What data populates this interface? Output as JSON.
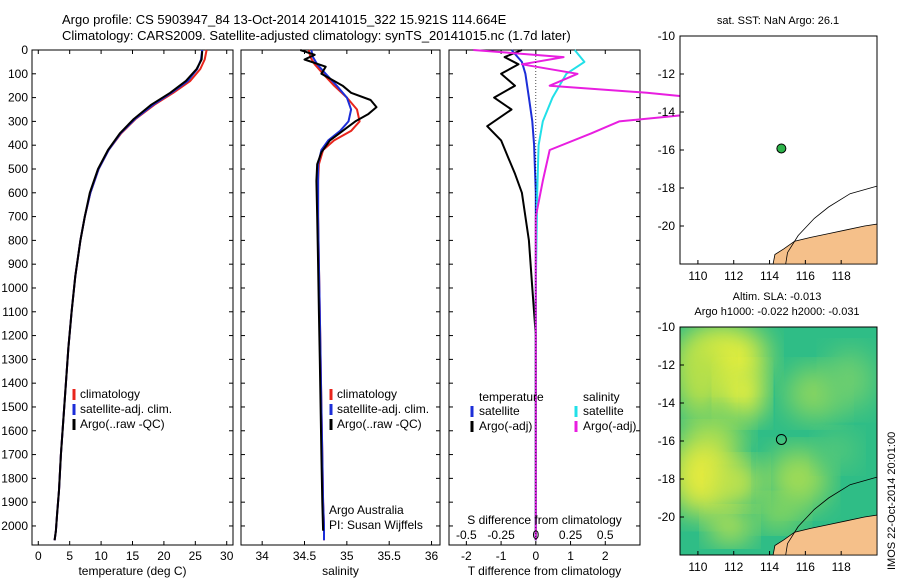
{
  "header": {
    "line1": "Argo profile: CS 5903947_84 13-Oct-2014 20141015_322 15.921S 114.664E",
    "line2": "Climatology: CARS2009. Satellite-adjusted climatology: synTS_20141015.nc (1.7d later)"
  },
  "colors": {
    "climatology": "#e8251c",
    "satellite": "#1c2ed8",
    "argo": "#000000",
    "sal_satellite": "#22e0e8",
    "sal_argo": "#e81ee0",
    "land": "#f5c08a",
    "float_marker": "#2db34a"
  },
  "footer_right": "IMOS 22-Oct-2014 20:01:00",
  "chart_data": [
    {
      "id": "temperature",
      "type": "line",
      "xlabel": "temperature (deg C)",
      "xlim": [
        -1,
        31
      ],
      "xticks": [
        0,
        5,
        10,
        15,
        20,
        25,
        30
      ],
      "ylim": [
        2080,
        0
      ],
      "yticks": [
        0,
        100,
        200,
        300,
        400,
        500,
        600,
        700,
        800,
        900,
        1000,
        1100,
        1200,
        1300,
        1400,
        1500,
        1600,
        1700,
        1800,
        1900,
        2000
      ],
      "legend": [
        "climatology",
        "satellite-adj. clim.",
        "Argo(..raw -QC)"
      ],
      "series": [
        {
          "name": "climatology",
          "color": "#e8251c",
          "x": [
            26.8,
            26.5,
            25.8,
            24.2,
            21.5,
            18.5,
            15.5,
            13.2,
            11.2,
            9.6,
            8.3,
            7.4,
            6.7,
            5.9,
            5.3,
            4.8,
            4.4,
            4.0,
            3.6,
            3.3,
            3.0,
            2.8,
            2.6
          ],
          "y": [
            0,
            40,
            80,
            130,
            180,
            230,
            290,
            350,
            420,
            500,
            600,
            700,
            800,
            950,
            1100,
            1250,
            1400,
            1550,
            1700,
            1850,
            1950,
            2020,
            2060
          ]
        },
        {
          "name": "satellite-adj. clim.",
          "color": "#1c2ed8",
          "x": [
            26.1,
            25.9,
            25.3,
            23.8,
            21.2,
            18.3,
            15.4,
            13.1,
            11.2,
            9.6,
            8.3,
            7.4,
            6.7,
            5.9,
            5.3,
            4.8,
            4.4,
            4.0,
            3.6,
            3.3,
            3.0,
            2.8,
            2.6
          ],
          "y": [
            0,
            40,
            80,
            130,
            180,
            230,
            290,
            350,
            420,
            500,
            600,
            700,
            800,
            950,
            1100,
            1250,
            1400,
            1550,
            1700,
            1850,
            1950,
            2020,
            2060
          ]
        },
        {
          "name": "Argo(..raw -QC)",
          "color": "#000000",
          "x": [
            26.1,
            26.0,
            25.2,
            23.5,
            21.0,
            18.0,
            15.2,
            13.0,
            11.1,
            9.5,
            8.2,
            7.4,
            6.7,
            5.9,
            5.3,
            4.8,
            4.4,
            4.0,
            3.6,
            3.3,
            3.0,
            2.8,
            2.6
          ],
          "y": [
            5,
            40,
            80,
            130,
            180,
            230,
            290,
            350,
            420,
            500,
            600,
            700,
            800,
            950,
            1100,
            1250,
            1400,
            1550,
            1700,
            1850,
            1950,
            2020,
            2060
          ]
        }
      ]
    },
    {
      "id": "salinity",
      "type": "line",
      "xlabel": "salinity",
      "xlim": [
        33.75,
        36.1
      ],
      "xticks": [
        34,
        34.5,
        35,
        35.5,
        36
      ],
      "ylim": [
        2080,
        0
      ],
      "legend": [
        "climatology",
        "satellite-adj. clim.",
        "Argo(..raw -QC)"
      ],
      "annotation": [
        "Argo Australia",
        "PI: Susan Wijffels"
      ],
      "series": [
        {
          "name": "climatology",
          "color": "#e8251c",
          "x": [
            34.55,
            34.57,
            34.62,
            34.72,
            34.85,
            35.0,
            35.12,
            35.15,
            35.05,
            34.85,
            34.72,
            34.67,
            34.66,
            34.66,
            34.67,
            34.68,
            34.69,
            34.7,
            34.71,
            34.72,
            34.73,
            34.73
          ],
          "y": [
            0,
            30,
            60,
            100,
            150,
            200,
            250,
            300,
            340,
            380,
            420,
            480,
            550,
            700,
            900,
            1100,
            1300,
            1500,
            1700,
            1900,
            2000,
            2060
          ]
        },
        {
          "name": "satellite-adj. clim.",
          "color": "#1c2ed8",
          "x": [
            34.58,
            34.6,
            34.65,
            34.75,
            34.88,
            35.0,
            35.05,
            35.02,
            34.92,
            34.78,
            34.7,
            34.66,
            34.66,
            34.66,
            34.67,
            34.68,
            34.69,
            34.7,
            34.71,
            34.72,
            34.73,
            34.73
          ],
          "y": [
            0,
            30,
            60,
            100,
            150,
            200,
            250,
            300,
            340,
            380,
            420,
            480,
            550,
            700,
            900,
            1100,
            1300,
            1500,
            1700,
            1900,
            2000,
            2060
          ]
        },
        {
          "name": "Argo(..raw -QC)",
          "color": "#000000",
          "x": [
            34.45,
            34.62,
            34.5,
            34.75,
            34.7,
            34.95,
            35.05,
            35.28,
            35.35,
            35.25,
            35.1,
            34.95,
            34.8,
            34.7,
            34.65,
            34.64,
            34.65,
            34.66,
            34.67,
            34.68,
            34.69,
            34.7,
            34.71,
            34.72
          ],
          "y": [
            0,
            20,
            40,
            70,
            100,
            150,
            180,
            210,
            240,
            270,
            300,
            340,
            380,
            430,
            480,
            550,
            700,
            900,
            1100,
            1300,
            1500,
            1700,
            1900,
            2020
          ]
        }
      ]
    },
    {
      "id": "differences",
      "type": "line",
      "xlabel": "T difference from climatology",
      "xlim": [
        -2.5,
        3
      ],
      "xticks": [
        -2,
        -1,
        0,
        1,
        2
      ],
      "top_xlabel": "S difference from climatology",
      "top_xticks": [
        -0.5,
        -0.25,
        0,
        0.25,
        0.5
      ],
      "top_xtick_labels": [
        "-0.5",
        "-0.25",
        "0",
        "0.25",
        "0.5"
      ],
      "ylim": [
        2080,
        0
      ],
      "legend_headers": [
        "temperature",
        "salinity"
      ],
      "legend": [
        "satellite",
        "Argo(-adj)",
        "satellite",
        "Argo(-adj)"
      ],
      "series": [
        {
          "name": "satellite",
          "group": "temperature",
          "color": "#1c2ed8",
          "x": [
            -0.7,
            -0.4,
            -0.3,
            -0.2,
            -0.1,
            -0.05,
            0,
            0,
            0,
            0
          ],
          "y": [
            0,
            50,
            100,
            200,
            300,
            400,
            600,
            1000,
            1500,
            2060
          ]
        },
        {
          "name": "Argo(-adj)",
          "group": "temperature",
          "color": "#000000",
          "x": [
            -0.4,
            -0.9,
            -0.5,
            -1.0,
            -0.6,
            -1.2,
            -0.7,
            -1.4,
            -1.0,
            -0.8,
            -0.6,
            -0.4,
            -0.3,
            -0.2,
            -0.1,
            0,
            0,
            0
          ],
          "y": [
            0,
            30,
            60,
            100,
            150,
            200,
            250,
            320,
            380,
            450,
            520,
            600,
            700,
            800,
            1000,
            1200,
            1600,
            2060
          ]
        },
        {
          "name": "satellite",
          "group": "salinity",
          "color": "#22e0e8",
          "x": [
            0.28,
            0.35,
            0.22,
            0.12,
            0.05,
            0.02,
            0.01,
            0,
            0,
            0
          ],
          "y": [
            0,
            50,
            100,
            200,
            300,
            400,
            600,
            1000,
            1500,
            2060
          ]
        },
        {
          "name": "Argo(-adj)",
          "group": "salinity",
          "color": "#e81ee0",
          "x": [
            -0.45,
            0.2,
            -0.1,
            0.3,
            0.1,
            0.8,
            1.5,
            1.3,
            0.6,
            0.4,
            0.1,
            0.05,
            0,
            0
          ],
          "y": [
            0,
            30,
            60,
            100,
            150,
            180,
            220,
            260,
            300,
            350,
            420,
            550,
            700,
            2060
          ]
        }
      ]
    },
    {
      "id": "map-sst",
      "type": "scatter",
      "title": "sat. SST: NaN Argo: 26.1",
      "xlim": [
        109,
        120
      ],
      "ylim": [
        -22,
        -10
      ],
      "xticks": [
        110,
        112,
        114,
        116,
        118
      ],
      "yticks": [
        -10,
        -12,
        -14,
        -16,
        -18,
        -20
      ],
      "point": {
        "x": 114.66,
        "y": -15.92
      }
    },
    {
      "id": "map-sla",
      "type": "heatmap",
      "title": "Altim. SLA: -0.013",
      "subtitle": "Argo h1000: -0.022 h2000: -0.031",
      "xlim": [
        109,
        120
      ],
      "ylim": [
        -22,
        -10
      ],
      "xticks": [
        110,
        112,
        114,
        116,
        118
      ],
      "yticks": [
        -10,
        -12,
        -14,
        -16,
        -18,
        -20
      ],
      "point": {
        "x": 114.66,
        "y": -15.92
      }
    }
  ]
}
